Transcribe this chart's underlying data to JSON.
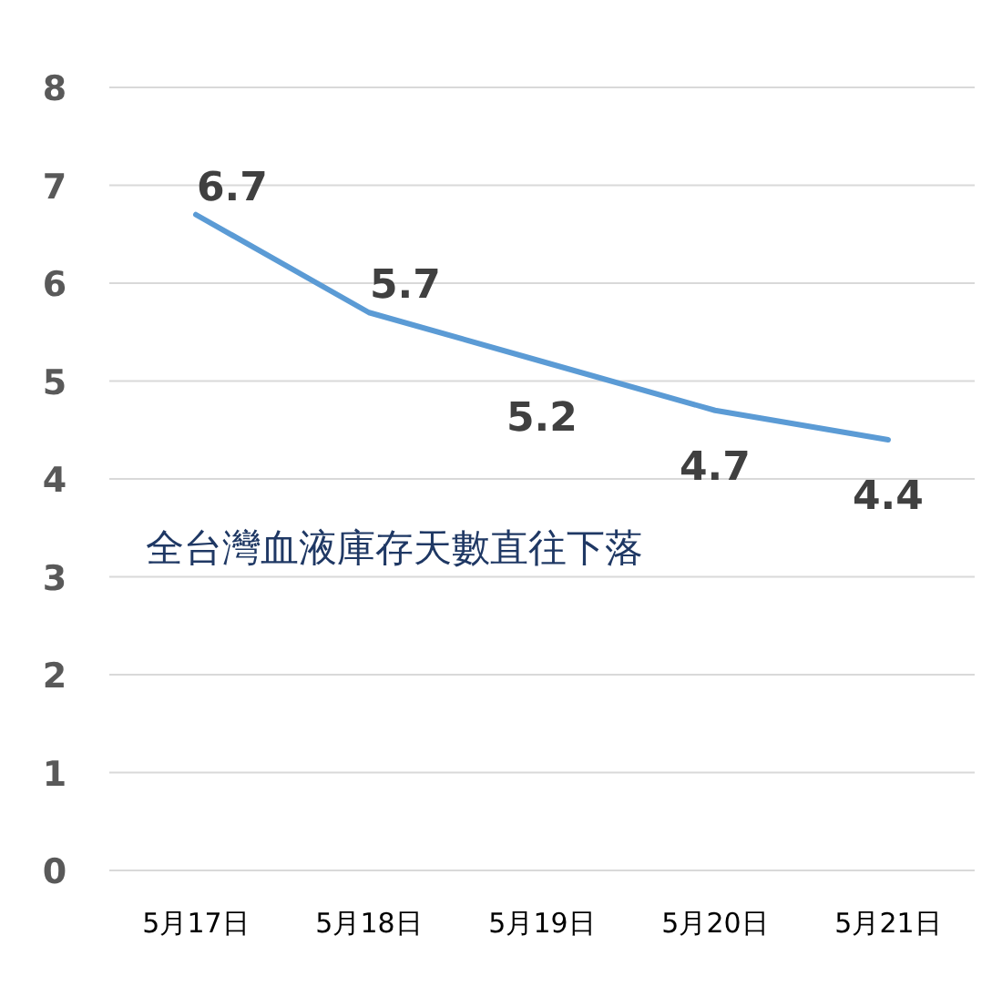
{
  "chart_data": {
    "type": "line",
    "title": "全台灣血液庫存天數直往下落",
    "categories": [
      "5月17日",
      "5月18日",
      "5月19日",
      "5月20日",
      "5月21日"
    ],
    "series": [
      {
        "color": "#5b9bd5",
        "values": [
          6.7,
          5.7,
          5.2,
          4.7,
          4.4
        ]
      }
    ],
    "ylim": [
      0,
      8
    ],
    "yticks": [
      0,
      1,
      2,
      3,
      4,
      5,
      6,
      7,
      8
    ],
    "grid": "y",
    "data_labels": true
  }
}
